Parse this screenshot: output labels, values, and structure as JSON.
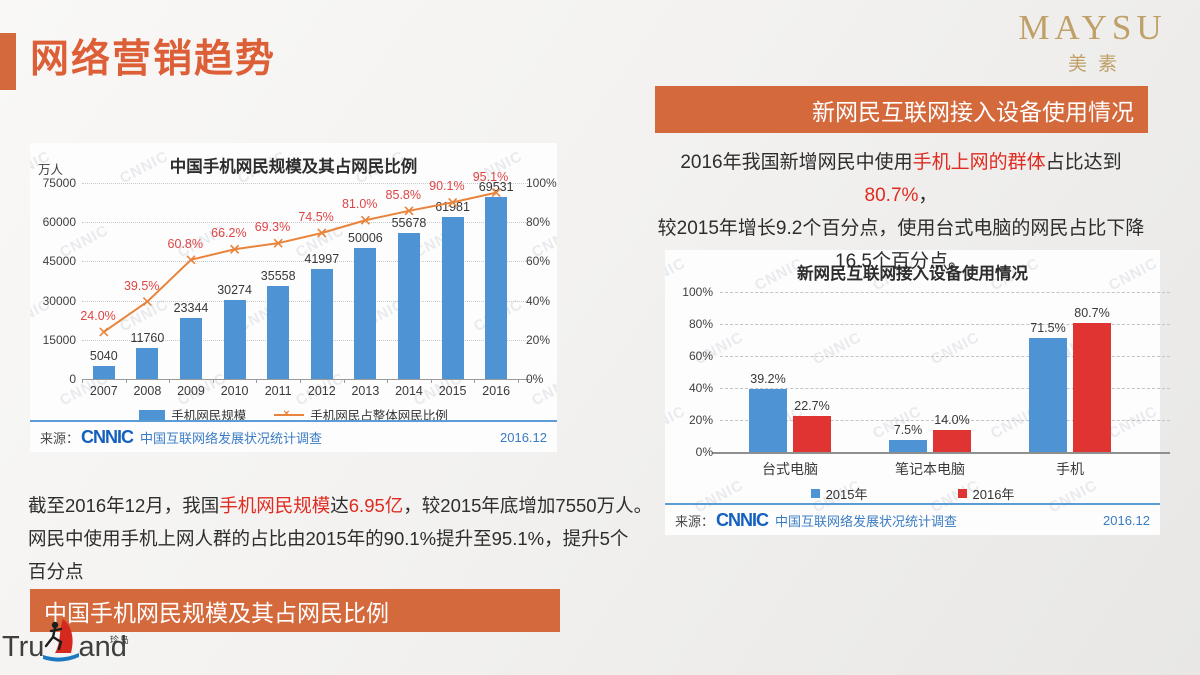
{
  "header": {
    "title": "网络营销趋势",
    "brand_en": "MAYSU",
    "brand_cn": "美素"
  },
  "banners": {
    "right": "新网民互联网接入设备使用情况",
    "left": "中国手机网民规模及其占网民比例"
  },
  "paragraphs": {
    "left": {
      "lines": [
        [
          {
            "t": "截至2016年12月，我国"
          },
          {
            "t": "手机网民规模",
            "red": true
          },
          {
            "t": "达"
          },
          {
            "t": "6.95亿",
            "red": true
          },
          {
            "t": "，较2015年底增加7550万人。"
          }
        ],
        [
          {
            "t": "网民中使用手机上网人群的占比由2015年的90.1%提升至95.1%，提升5个"
          }
        ],
        [
          {
            "t": "百分点"
          }
        ]
      ]
    },
    "right": {
      "lines": [
        [
          {
            "t": "2016年我国新增网民中使用"
          },
          {
            "t": "手机上网的群体",
            "red": true
          },
          {
            "t": "占比达到"
          },
          {
            "t": "80.7%",
            "red": true
          },
          {
            "t": "，"
          }
        ],
        [
          {
            "t": "较2015年增长9.2个百分点，使用台式电脑的网民占比下降"
          }
        ],
        [
          {
            "t": "16.5个百分点。"
          }
        ]
      ]
    }
  },
  "chart_data": [
    {
      "type": "bar+line",
      "title": "中国手机网民规模及其占网民比例",
      "unit_label": "万人",
      "categories": [
        "2007",
        "2008",
        "2009",
        "2010",
        "2011",
        "2012",
        "2013",
        "2014",
        "2015",
        "2016"
      ],
      "series": [
        {
          "name": "手机网民规模",
          "chart": "bar",
          "axis": "left",
          "color": "#4e94d4",
          "values": [
            5040,
            11760,
            23344,
            30274,
            35558,
            41997,
            50006,
            55678,
            61981,
            69531
          ]
        },
        {
          "name": "手机网民占整体网民比例",
          "chart": "line",
          "axis": "right",
          "color": "#e8843c",
          "label_color": "#df4545",
          "label_suffix": "%",
          "values": [
            24.0,
            39.5,
            60.8,
            66.2,
            69.3,
            74.5,
            81.0,
            85.8,
            90.1,
            95.1
          ]
        }
      ],
      "left_axis": {
        "min": 0,
        "max": 75000,
        "ticks": [
          "75000",
          "60000",
          "45000",
          "30000",
          "15000",
          "0"
        ]
      },
      "right_axis": {
        "min": 0,
        "max": 100,
        "ticks": [
          "100%",
          "80%",
          "60%",
          "40%",
          "20%",
          "0%"
        ]
      },
      "grid": "dotted",
      "legend_position": "bottom",
      "watermark": "CNNIC",
      "source": {
        "prefix": "来源：",
        "logo": "CNNIC",
        "text": "中国互联网络发展状况统计调查",
        "date": "2016.12"
      }
    },
    {
      "type": "bar",
      "title": "新网民互联网接入设备使用情况",
      "categories": [
        "台式电脑",
        "笔记本电脑",
        "手机"
      ],
      "series": [
        {
          "name": "2015年",
          "color": "#4e94d4",
          "values": [
            39.2,
            7.5,
            71.5
          ]
        },
        {
          "name": "2016年",
          "color": "#df3431",
          "values": [
            22.7,
            14.0,
            80.7
          ]
        }
      ],
      "y_axis": {
        "min": 0,
        "max": 100,
        "ticks": [
          "100%",
          "80%",
          "60%",
          "40%",
          "20%",
          "0%"
        ]
      },
      "value_suffix": "%",
      "grid": "dashed",
      "legend_position": "bottom",
      "watermark": "CNNIC",
      "source": {
        "prefix": "来源：",
        "logo": "CNNIC",
        "text": "中国互联网络发展状况统计调查",
        "date": "2016.12"
      }
    }
  ],
  "trueland": {
    "prefix": "Tru",
    "suffix": "and",
    "tag": "珍岛"
  },
  "colors": {
    "accent_orange": "#d4693c",
    "title_orange": "#dd5f38",
    "brand_gold": "#bfa068",
    "bar_blue": "#4e94d4",
    "bar_red": "#df3431",
    "line_orange": "#e8843c",
    "red_text": "#e02b20",
    "source_blue": "#3a7cc4"
  }
}
